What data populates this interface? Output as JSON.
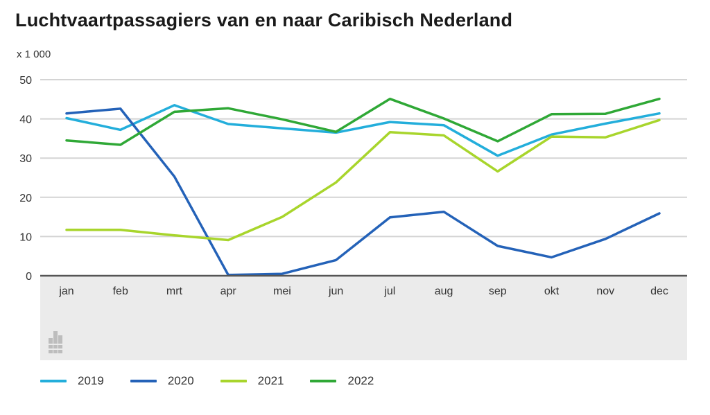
{
  "title": "Luchtvaartpassagiers van en naar Caribisch Nederland",
  "unit_label": "x 1 000",
  "colors": {
    "2019": "#23aedb",
    "2020": "#2462b8",
    "2021": "#a8d52c",
    "2022": "#2fa836"
  },
  "chart_data": {
    "type": "line",
    "title": "Luchtvaartpassagiers van en naar Caribisch Nederland",
    "ylabel": "x 1 000",
    "ylim": [
      0,
      50
    ],
    "yticks": [
      0,
      10,
      20,
      30,
      40,
      50
    ],
    "grid": true,
    "legend_position": "bottom",
    "categories": [
      "jan",
      "feb",
      "mrt",
      "apr",
      "mei",
      "jun",
      "jul",
      "aug",
      "sep",
      "okt",
      "nov",
      "dec"
    ],
    "series": [
      {
        "name": "2019",
        "color": "#23aedb",
        "values": [
          40.2,
          37.2,
          43.5,
          38.7,
          37.6,
          36.5,
          39.2,
          38.4,
          30.6,
          36.0,
          38.8,
          41.4
        ]
      },
      {
        "name": "2020",
        "color": "#2462b8",
        "values": [
          41.4,
          42.6,
          25.3,
          0.2,
          0.5,
          4.0,
          14.9,
          16.3,
          7.6,
          4.7,
          9.4,
          15.9
        ]
      },
      {
        "name": "2021",
        "color": "#a8d52c",
        "values": [
          11.7,
          11.7,
          10.3,
          9.1,
          15.0,
          23.8,
          36.6,
          35.8,
          26.6,
          35.5,
          35.3,
          39.7
        ]
      },
      {
        "name": "2022",
        "color": "#2fa836",
        "values": [
          34.5,
          33.4,
          41.8,
          42.7,
          39.9,
          36.7,
          45.1,
          40.1,
          34.3,
          41.2,
          41.3,
          45.1
        ]
      }
    ]
  }
}
